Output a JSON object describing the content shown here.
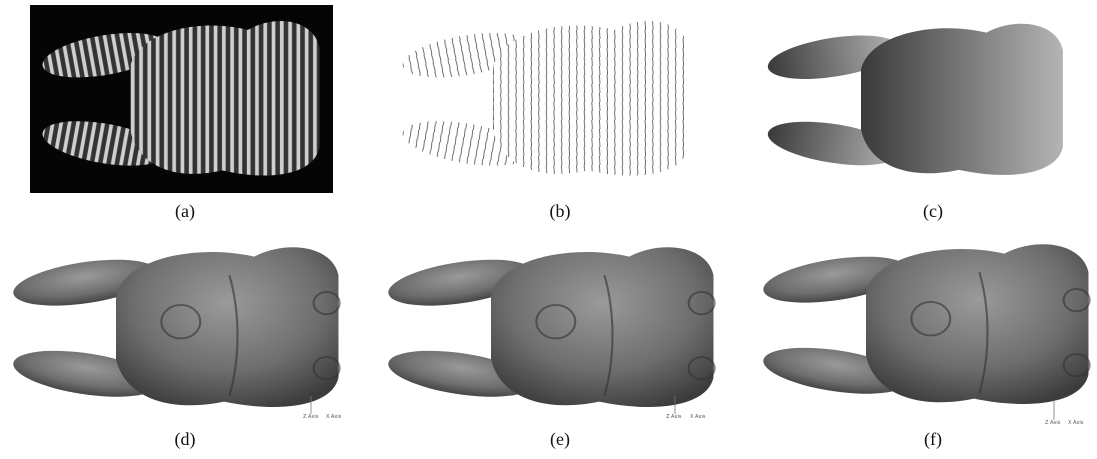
{
  "panels": [
    {
      "label": "(a)"
    },
    {
      "label": "(b)"
    },
    {
      "label": "(c)"
    },
    {
      "label": "(d)",
      "axis": {
        "z": "Z Axis",
        "x": "X Axis"
      }
    },
    {
      "label": "(e)",
      "axis": {
        "z": "Z Axis",
        "x": "X Axis"
      }
    },
    {
      "label": "(f)",
      "axis": {
        "z": "Z Axis",
        "x": "X Axis"
      }
    }
  ]
}
